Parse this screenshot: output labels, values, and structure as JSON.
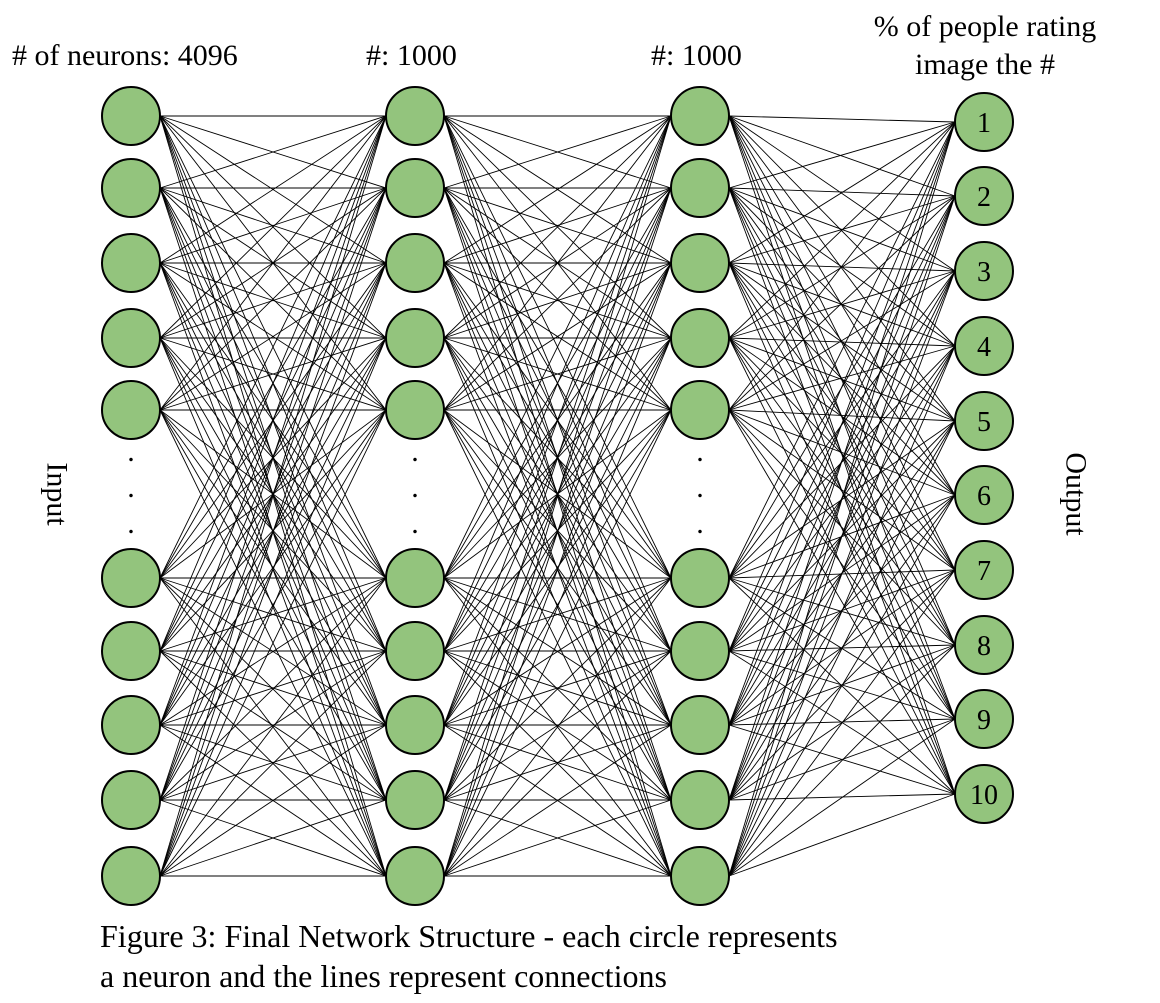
{
  "titles": {
    "input_layer": "# of neurons: 4096",
    "hidden1": "#: 1000",
    "hidden2": "#: 1000",
    "output_line1": "% of people rating",
    "output_line2": "image the #"
  },
  "side_labels": {
    "left": "Input",
    "right": "Output"
  },
  "output_labels": [
    "1",
    "2",
    "3",
    "4",
    "5",
    "6",
    "7",
    "8",
    "9",
    "10"
  ],
  "ellipsis_dot": ".",
  "caption": {
    "line1": "Figure 3: Final Network Structure - each circle represents",
    "line2": "a neuron and the lines represent connections"
  },
  "colors": {
    "neuron_fill": "#93c47d",
    "neuron_stroke": "#000000",
    "connection": "#000000"
  }
}
